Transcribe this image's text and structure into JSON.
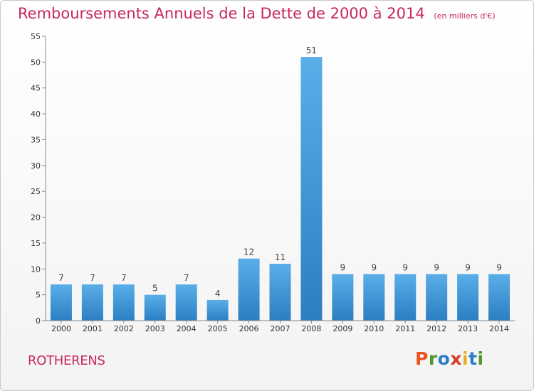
{
  "header": {
    "title": "Remboursements Annuels de la Dette de 2000 à 2014",
    "subtitle": "(en milliers d'€)"
  },
  "footer": {
    "city": "ROTHERENS",
    "logo_text": "Proxiti",
    "logo_colors": [
      "#e8541f",
      "#4c9a2a",
      "#2a7fc9",
      "#d93b2b",
      "#f0a81c",
      "#2a7fc9",
      "#4c9a2a"
    ]
  },
  "chart_data": {
    "type": "bar",
    "title": "Remboursements Annuels de la Dette de 2000 à 2014",
    "subtitle": "(en milliers d'€)",
    "xlabel": "",
    "ylabel": "",
    "categories": [
      "2000",
      "2001",
      "2002",
      "2003",
      "2004",
      "2005",
      "2006",
      "2007",
      "2008",
      "2009",
      "2010",
      "2011",
      "2012",
      "2013",
      "2014"
    ],
    "values": [
      7,
      7,
      7,
      5,
      7,
      4,
      12,
      11,
      51,
      9,
      9,
      9,
      9,
      9,
      9
    ],
    "ylim": [
      0,
      55
    ],
    "yticks": [
      0,
      5,
      10,
      15,
      20,
      25,
      30,
      35,
      40,
      45,
      50,
      55
    ],
    "grid": false,
    "legend": "none",
    "bar_color_top": "#5aaee8",
    "bar_color_bottom": "#2b7fc2",
    "axis_color": "#888888"
  }
}
